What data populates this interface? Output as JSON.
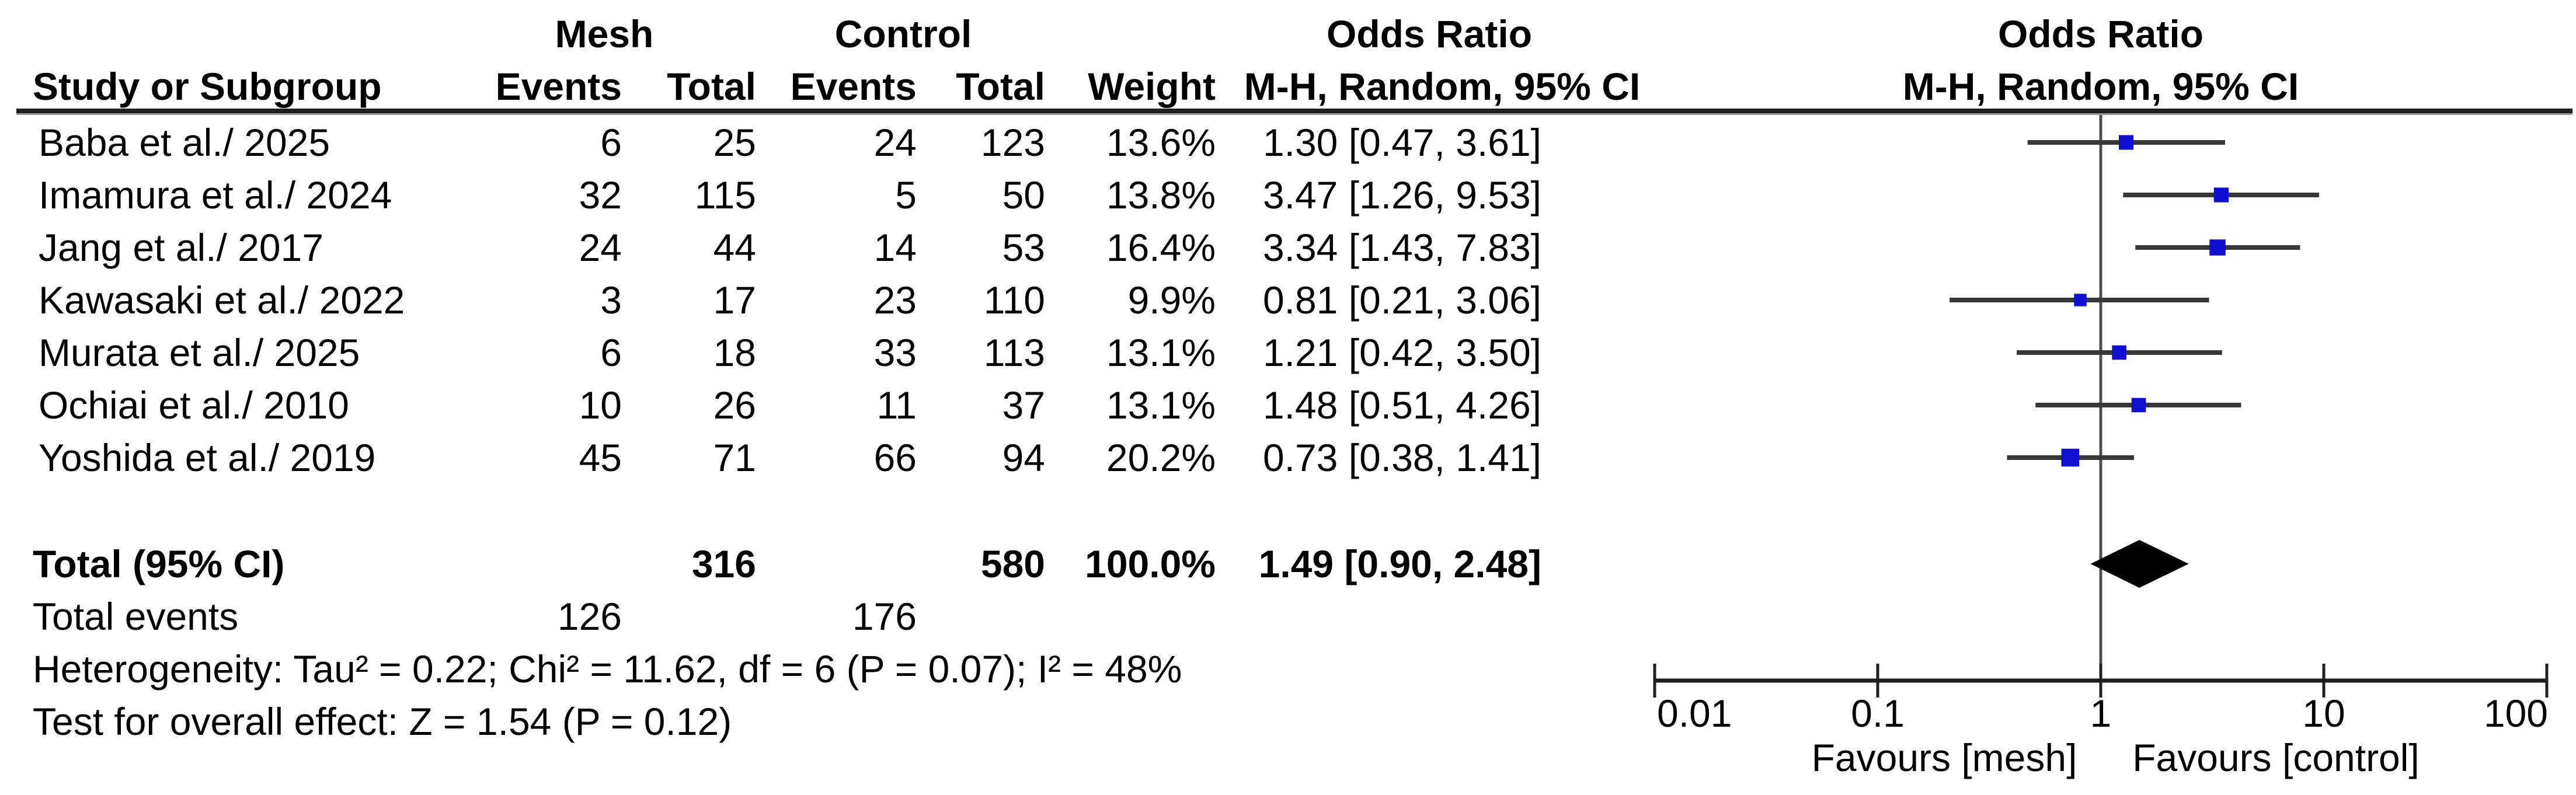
{
  "header": {
    "group_mesh": "Mesh",
    "group_control": "Control",
    "or_left": "Odds Ratio",
    "or_right": "Odds Ratio",
    "study_col": "Study or Subgroup",
    "events_col": "Events",
    "total_col": "Total",
    "weight_col": "Weight",
    "mh_col_left": "M-H, Random, 95% CI",
    "mh_col_right": "M-H, Random, 95% CI"
  },
  "total_row": {
    "label": "Total (95% CI)",
    "mesh_total": "316",
    "control_total": "580",
    "weight": "100.0%",
    "or_label": "1.49 [0.90, 2.48]"
  },
  "total_events_row": {
    "label": "Total events",
    "mesh_events": "126",
    "control_events": "176"
  },
  "footnotes": {
    "heterogeneity": "Heterogeneity: Tau² = 0.22; Chi² = 11.62, df = 6 (P = 0.07); I² = 48%",
    "overall_test": "Test for overall effect: Z = 1.54 (P = 0.12)"
  },
  "colors": {
    "marker_blue": "#1010D0",
    "diamond_black": "#000000",
    "ci_line": "#383838",
    "rule": "#1f1f1f",
    "center_line": "#4d4d4d",
    "text": "#000000"
  },
  "chart_data": {
    "type": "scatter",
    "subtype": "forest-plot",
    "effect_measure": "Odds Ratio, M-H, Random, 95% CI",
    "x_scale": "log",
    "xlim": [
      0.01,
      100
    ],
    "x_ticks": [
      {
        "value": 0.01,
        "label": "0.01"
      },
      {
        "value": 0.1,
        "label": "0.1"
      },
      {
        "value": 1,
        "label": "1"
      },
      {
        "value": 10,
        "label": "10"
      },
      {
        "value": 100,
        "label": "100"
      }
    ],
    "favours_left": "Favours [mesh]",
    "favours_right": "Favours [control]",
    "studies": [
      {
        "name": "Baba et al./ 2025",
        "mesh_events": "6",
        "mesh_total": "25",
        "control_events": "24",
        "control_total": "123",
        "weight_label": "13.6%",
        "weight_pct": 13.6,
        "or": 1.3,
        "ci_low": 0.47,
        "ci_high": 3.61,
        "or_label": "1.30 [0.47, 3.61]"
      },
      {
        "name": "Imamura et al./ 2024",
        "mesh_events": "32",
        "mesh_total": "115",
        "control_events": "5",
        "control_total": "50",
        "weight_label": "13.8%",
        "weight_pct": 13.8,
        "or": 3.47,
        "ci_low": 1.26,
        "ci_high": 9.53,
        "or_label": "3.47 [1.26, 9.53]"
      },
      {
        "name": "Jang et al./ 2017",
        "mesh_events": "24",
        "mesh_total": "44",
        "control_events": "14",
        "control_total": "53",
        "weight_label": "16.4%",
        "weight_pct": 16.4,
        "or": 3.34,
        "ci_low": 1.43,
        "ci_high": 7.83,
        "or_label": "3.34 [1.43, 7.83]"
      },
      {
        "name": "Kawasaki et al./ 2022",
        "mesh_events": "3",
        "mesh_total": "17",
        "control_events": "23",
        "control_total": "110",
        "weight_label": "9.9%",
        "weight_pct": 9.9,
        "or": 0.81,
        "ci_low": 0.21,
        "ci_high": 3.06,
        "or_label": "0.81 [0.21, 3.06]"
      },
      {
        "name": "Murata et al./ 2025",
        "mesh_events": "6",
        "mesh_total": "18",
        "control_events": "33",
        "control_total": "113",
        "weight_label": "13.1%",
        "weight_pct": 13.1,
        "or": 1.21,
        "ci_low": 0.42,
        "ci_high": 3.5,
        "or_label": "1.21 [0.42, 3.50]"
      },
      {
        "name": "Ochiai et al./ 2010",
        "mesh_events": "10",
        "mesh_total": "26",
        "control_events": "11",
        "control_total": "37",
        "weight_label": "13.1%",
        "weight_pct": 13.1,
        "or": 1.48,
        "ci_low": 0.51,
        "ci_high": 4.26,
        "or_label": "1.48 [0.51, 4.26]"
      },
      {
        "name": "Yoshida et al./ 2019",
        "mesh_events": "45",
        "mesh_total": "71",
        "control_events": "66",
        "control_total": "94",
        "weight_label": "20.2%",
        "weight_pct": 20.2,
        "or": 0.73,
        "ci_low": 0.38,
        "ci_high": 1.41,
        "or_label": "0.73 [0.38, 1.41]"
      }
    ],
    "overall": {
      "or": 1.49,
      "ci_low": 0.9,
      "ci_high": 2.48,
      "or_label": "1.49 [0.90, 2.48]",
      "weight_label": "100.0%"
    }
  }
}
